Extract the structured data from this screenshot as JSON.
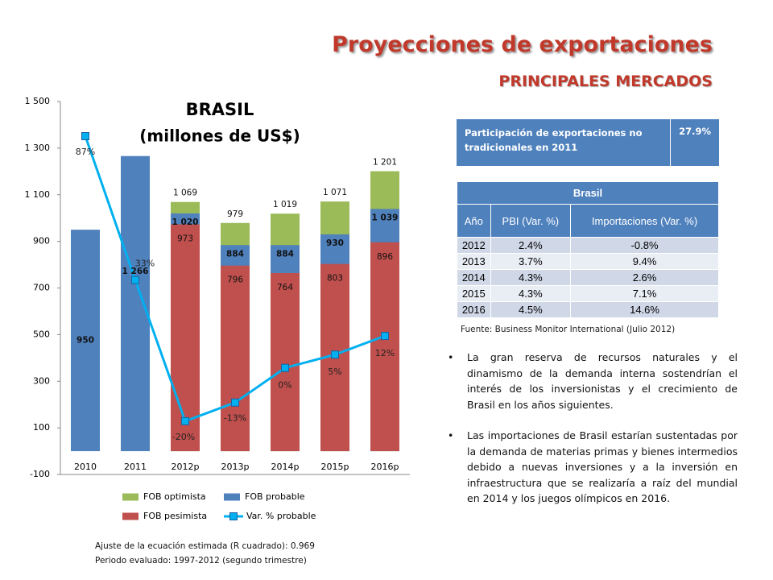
{
  "header": {
    "title": "Proyecciones de exportaciones",
    "subtitle": "PRINCIPALES MERCADOS"
  },
  "chart_data": {
    "type": "bar",
    "layout": "overlap",
    "title": "BRASIL",
    "subtitle": "(millones de US$)",
    "categories": [
      "2010",
      "2011",
      "2012p",
      "2013p",
      "2014p",
      "2015p",
      "2016p"
    ],
    "series": [
      {
        "name": "FOB optimista",
        "color": "#9bbb59",
        "values": [
          null,
          null,
          1069,
          979,
          1019,
          1071,
          1201
        ],
        "value_labels": [
          null,
          null,
          "1 069",
          "979",
          "1 019",
          "1 071",
          "1 201"
        ]
      },
      {
        "name": "FOB probable",
        "color": "#4f81bd",
        "values": [
          950,
          1266,
          1020,
          884,
          884,
          930,
          1039
        ],
        "value_labels": [
          "950",
          "1 266",
          "1 020",
          "884",
          "884",
          "930",
          "1 039"
        ]
      },
      {
        "name": "FOB pesimista",
        "color": "#c0504d",
        "values": [
          null,
          null,
          973,
          796,
          764,
          803,
          896
        ],
        "value_labels": [
          null,
          null,
          "973",
          "796",
          "764",
          "803",
          "896"
        ]
      },
      {
        "name": "Var. % probable",
        "type": "line",
        "axis": "y2",
        "color": "#00b0f0",
        "values": [
          87,
          33,
          -20,
          -13,
          0,
          5,
          12
        ],
        "value_labels": [
          "87%",
          "33%",
          "-20%",
          "-13%",
          "0%",
          "5%",
          "12%"
        ]
      }
    ],
    "ylim": [
      -100,
      1500
    ],
    "yticks": [
      -100,
      100,
      300,
      500,
      700,
      900,
      {
        "value": 1100,
        "label": "1 100"
      },
      {
        "value": 1300,
        "label": "1 300"
      },
      {
        "value": 1500,
        "label": "1 500"
      }
    ],
    "y2lim": [
      -40,
      100
    ],
    "grid": false,
    "legend": "bottom"
  },
  "notes": [
    "Ajuste de la ecuación estimada (R cuadrado): 0.969",
    "Periodo evaluado: 1997-2012  (segundo trimestre)"
  ],
  "participation": {
    "label": "Participación de exportaciones no tradicionales en 2011",
    "value": "27.9%"
  },
  "table": {
    "title": "Brasil",
    "headers": [
      "Año",
      "PBI (Var. %)",
      "Importaciones (Var. %)"
    ],
    "rows": [
      [
        "2012",
        "2.4%",
        "-0.8%"
      ],
      [
        "2013",
        "3.7%",
        "9.4%"
      ],
      [
        "2014",
        "4.3%",
        "2.6%"
      ],
      [
        "2015",
        "4.3%",
        "7.1%"
      ],
      [
        "2016",
        "4.5%",
        "14.6%"
      ]
    ]
  },
  "source": "Fuente: Business Monitor International (Julio 2012)",
  "bullets": [
    "La gran reserva de recursos naturales y el dinamismo de la demanda interna sostendrían el interés de los inversionistas y el crecimiento de Brasil en los años siguientes.",
    "Las importaciones de Brasil estarían sustentadas por la demanda de materias primas y bienes intermedios debido a nuevas inversiones y a la inversión en infraestructura que se realizaría a raíz del mundial en 2014 y los juegos olímpicos en 2016."
  ]
}
